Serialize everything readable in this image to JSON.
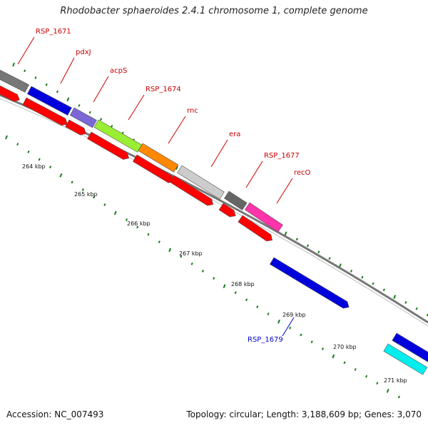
{
  "title": "Rhodobacter sphaeroides 2.4.1 chromosome 1, complete genome",
  "footer": {
    "accession": "Accession: NC_007493",
    "summary": "Topology: circular; Length: 3,188,609 bp; Genes: 3,070"
  },
  "colors": {
    "label_red": "#cc0000",
    "label_blue": "#0000cc",
    "tick": "#1a7a1a",
    "backbone": "#777777"
  },
  "kbp_labels": [
    "264 kbp",
    "265 kbp",
    "266 kbp",
    "267 kbp",
    "268 kbp",
    "269 kbp",
    "270 kbp",
    "271 kbp"
  ],
  "gene_labels": [
    {
      "name": "RSP_1671",
      "color": "red"
    },
    {
      "name": "pdxJ",
      "color": "red"
    },
    {
      "name": "acpS",
      "color": "red"
    },
    {
      "name": "RSP_1674",
      "color": "red"
    },
    {
      "name": "rnc",
      "color": "red"
    },
    {
      "name": "era",
      "color": "red"
    },
    {
      "name": "RSP_1677",
      "color": "red"
    },
    {
      "name": "recO",
      "color": "red"
    },
    {
      "name": "RSP_1679",
      "color": "blue"
    }
  ]
}
